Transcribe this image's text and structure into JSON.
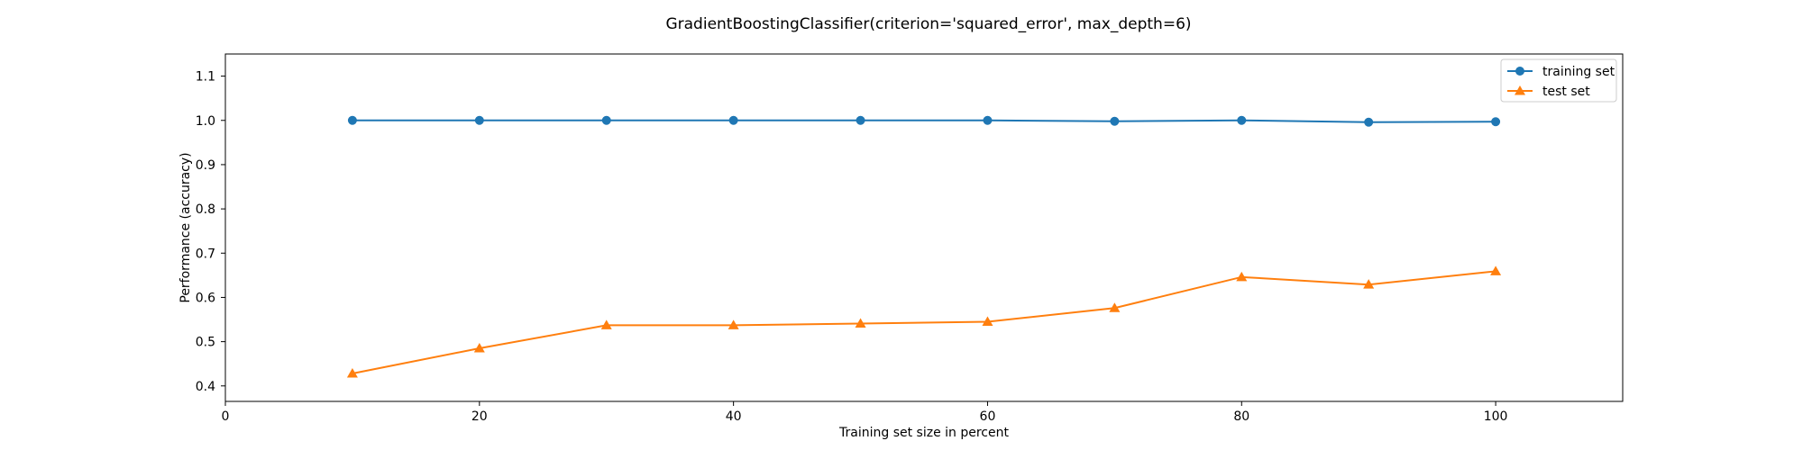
{
  "chart_data": {
    "type": "line",
    "title": "GradientBoostingClassifier(criterion='squared_error', max_depth=6)",
    "xlabel": "Training set size in percent",
    "ylabel": "Performance (accuracy)",
    "xlim": [
      0,
      110
    ],
    "ylim": [
      0.365,
      1.15
    ],
    "xticks": [
      0,
      20,
      40,
      60,
      80,
      100
    ],
    "yticks": [
      0.4,
      0.5,
      0.6,
      0.7,
      0.8,
      0.9,
      1.0,
      1.1
    ],
    "xtick_labels": [
      "0",
      "20",
      "40",
      "60",
      "80",
      "100"
    ],
    "ytick_labels": [
      "0.4",
      "0.5",
      "0.6",
      "0.7",
      "0.8",
      "0.9",
      "1.0",
      "1.1"
    ],
    "x": [
      10,
      20,
      30,
      40,
      50,
      60,
      70,
      80,
      90,
      100
    ],
    "series": [
      {
        "name": "training set",
        "marker": "circle",
        "color": "#1f77b4",
        "values": [
          1.0,
          1.0,
          1.0,
          1.0,
          1.0,
          1.0,
          0.998,
          1.0,
          0.996,
          0.997
        ]
      },
      {
        "name": "test set",
        "marker": "triangle",
        "color": "#ff7f0e",
        "values": [
          0.428,
          0.485,
          0.537,
          0.537,
          0.541,
          0.545,
          0.576,
          0.646,
          0.629,
          0.659
        ]
      }
    ],
    "grid": false,
    "legend": "top-right"
  }
}
